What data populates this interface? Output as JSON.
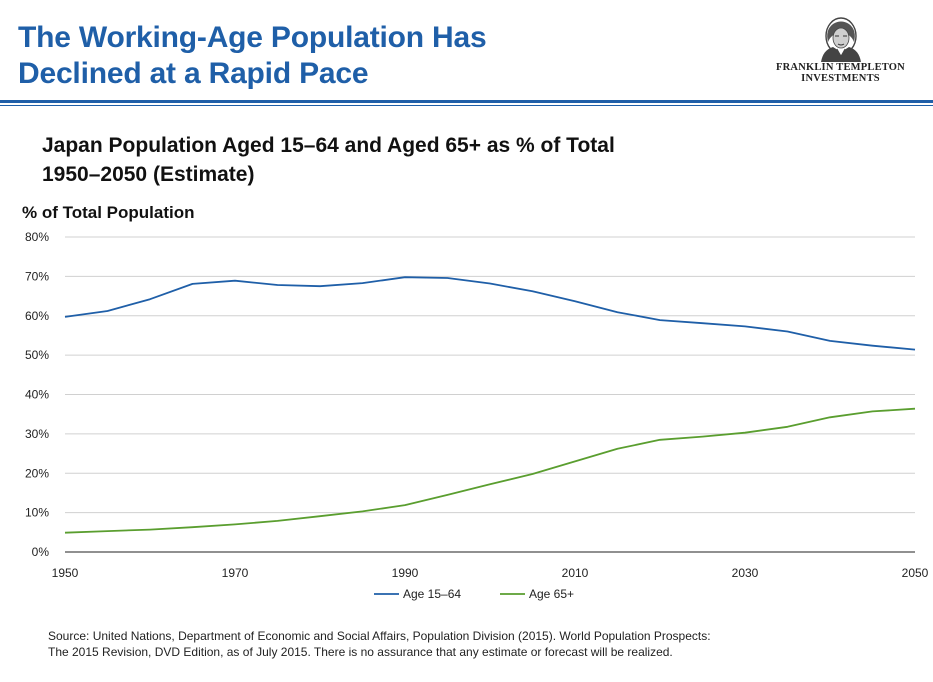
{
  "header": {
    "title_line1": "The Working-Age Population Has",
    "title_line2": "Declined at a Rapid Pace"
  },
  "logo": {
    "line1": "FRANKLIN TEMPLETON",
    "line2": "INVESTMENTS",
    "icon": "franklin-portrait-icon"
  },
  "colors": {
    "brand": "#1f5fa8",
    "series_15_64": "#1f5fa8",
    "series_65_plus": "#5a9e2f",
    "grid": "#d0d0d0"
  },
  "chart_data": {
    "type": "line",
    "title": "Japan Population Aged 15–64 and Aged 65+ as % of Total",
    "subtitle": "1950–2050 (Estimate)",
    "xlabel": "",
    "ylabel": "% of Total Population",
    "xlim": [
      1950,
      2050
    ],
    "ylim": [
      0,
      80
    ],
    "x_ticks": [
      1950,
      1970,
      1990,
      2010,
      2030,
      2050
    ],
    "y_ticks": [
      "0%",
      "10%",
      "20%",
      "30%",
      "40%",
      "50%",
      "60%",
      "70%",
      "80%"
    ],
    "grid": true,
    "legend_position": "bottom-center",
    "x": [
      1950,
      1955,
      1960,
      1965,
      1970,
      1975,
      1980,
      1985,
      1990,
      1995,
      2000,
      2005,
      2010,
      2015,
      2020,
      2025,
      2030,
      2035,
      2040,
      2045,
      2050
    ],
    "series": [
      {
        "name": "Age 15–64",
        "values": [
          59.7,
          61.2,
          64.2,
          68.1,
          68.9,
          67.8,
          67.5,
          68.3,
          69.8,
          69.6,
          68.2,
          66.2,
          63.7,
          60.9,
          58.9,
          58.1,
          57.3,
          56.0,
          53.6,
          52.4,
          51.4
        ]
      },
      {
        "name": "Age 65+",
        "values": [
          4.9,
          5.3,
          5.7,
          6.3,
          7.0,
          7.9,
          9.1,
          10.3,
          11.9,
          14.5,
          17.2,
          19.8,
          23.0,
          26.2,
          28.5,
          29.3,
          30.3,
          31.8,
          34.2,
          35.7,
          36.4
        ]
      }
    ]
  },
  "source": {
    "line1": "Source: United Nations, Department of Economic and Social Affairs, Population Division (2015). World Population Prospects:",
    "line2": "The 2015 Revision, DVD Edition, as of July 2015. There is no assurance that any estimate or forecast will be realized."
  }
}
